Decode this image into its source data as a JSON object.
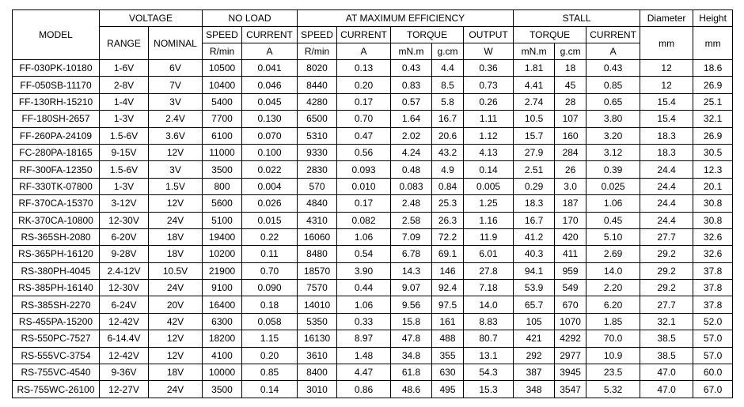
{
  "table": {
    "header": [
      [
        "MODEL",
        "VOLTAGE",
        "NO LOAD",
        "AT MAXIMUM EFFICIENCY",
        "STALL",
        "Diameter",
        "Height"
      ],
      [
        "RANGE",
        "NOMINAL",
        "SPEED",
        "CURRENT",
        "SPEED",
        "CURRENT",
        "TORQUE",
        "OUTPUT",
        "TORQUE",
        "CURRENT",
        "mm",
        "mm"
      ],
      [
        "R/min",
        "A",
        "R/min",
        "A",
        "mN.m",
        "g.cm",
        "W",
        "mN.m",
        "g.cm",
        "A"
      ]
    ],
    "rows": [
      [
        "FF-030PK-10180",
        "1-6V",
        "6V",
        "10500",
        "0.041",
        "8020",
        "0.13",
        "0.43",
        "4.4",
        "0.36",
        "1.81",
        "18",
        "0.43",
        "12",
        "18.6"
      ],
      [
        "FF-050SB-11170",
        "2-8V",
        "7V",
        "10400",
        "0.046",
        "8440",
        "0.20",
        "0.83",
        "8.5",
        "0.73",
        "4.41",
        "45",
        "0.85",
        "12",
        "26.9"
      ],
      [
        "FF-130RH-15210",
        "1-4V",
        "3V",
        "5400",
        "0.045",
        "4280",
        "0.17",
        "0.57",
        "5.8",
        "0.26",
        "2.74",
        "28",
        "0.65",
        "15.4",
        "25.1"
      ],
      [
        "FF-180SH-2657",
        "1-3V",
        "2.4V",
        "7700",
        "0.130",
        "6500",
        "0.70",
        "1.64",
        "16.7",
        "1.11",
        "10.5",
        "107",
        "3.80",
        "15.4",
        "32.1"
      ],
      [
        "FF-260PA-24109",
        "1.5-6V",
        "3.6V",
        "6100",
        "0.070",
        "5310",
        "0.47",
        "2.02",
        "20.6",
        "1.12",
        "15.7",
        "160",
        "3.20",
        "18.3",
        "26.9"
      ],
      [
        "FC-280PA-18165",
        "9-15V",
        "12V",
        "11000",
        "0.100",
        "9330",
        "0.56",
        "4.24",
        "43.2",
        "4.13",
        "27.9",
        "284",
        "3.12",
        "18.3",
        "30.5"
      ],
      [
        "RF-300FA-12350",
        "1.5-6V",
        "3V",
        "3500",
        "0.022",
        "2830",
        "0.093",
        "0.48",
        "4.9",
        "0.14",
        "2.51",
        "26",
        "0.39",
        "24.4",
        "12.3"
      ],
      [
        "RF-330TK-07800",
        "1-3V",
        "1.5V",
        "800",
        "0.004",
        "570",
        "0.010",
        "0.083",
        "0.84",
        "0.005",
        "0.29",
        "3.0",
        "0.025",
        "24.4",
        "20.1"
      ],
      [
        "RF-370CA-15370",
        "3-12V",
        "12V",
        "5600",
        "0.026",
        "4840",
        "0.17",
        "2.48",
        "25.3",
        "1.25",
        "18.3",
        "187",
        "1.06",
        "24.4",
        "30.8"
      ],
      [
        "RK-370CA-10800",
        "12-30V",
        "24V",
        "5100",
        "0.015",
        "4310",
        "0.082",
        "2.58",
        "26.3",
        "1.16",
        "16.7",
        "170",
        "0.45",
        "24.4",
        "30.8"
      ],
      [
        "RS-365SH-2080",
        "6-20V",
        "18V",
        "19400",
        "0.22",
        "16060",
        "1.06",
        "7.09",
        "72.2",
        "11.9",
        "41.2",
        "420",
        "5.10",
        "27.7",
        "32.6"
      ],
      [
        "RS-365PH-16120",
        "9-28V",
        "18V",
        "10200",
        "0.11",
        "8480",
        "0.54",
        "6.78",
        "69.1",
        "6.01",
        "40.3",
        "411",
        "2.69",
        "29.2",
        "32.6"
      ],
      [
        "RS-380PH-4045",
        "2.4-12V",
        "10.5V",
        "21900",
        "0.70",
        "18570",
        "3.90",
        "14.3",
        "146",
        "27.8",
        "94.1",
        "959",
        "14.0",
        "29.2",
        "37.8"
      ],
      [
        "RS-385PH-16140",
        "12-30V",
        "24V",
        "9100",
        "0.090",
        "7570",
        "0.44",
        "9.07",
        "92.4",
        "7.18",
        "53.9",
        "549",
        "2.20",
        "29.2",
        "37.8"
      ],
      [
        "RS-385SH-2270",
        "6-24V",
        "20V",
        "16400",
        "0.18",
        "14010",
        "1.06",
        "9.56",
        "97.5",
        "14.0",
        "65.7",
        "670",
        "6.20",
        "27.7",
        "37.8"
      ],
      [
        "RS-455PA-15200",
        "12-42V",
        "42V",
        "6300",
        "0.058",
        "5350",
        "0.33",
        "15.8",
        "161",
        "8.83",
        "105",
        "1070",
        "1.85",
        "32.1",
        "52.0"
      ],
      [
        "RS-550PC-7527",
        "6-14.4V",
        "12V",
        "18200",
        "1.15",
        "16130",
        "8.97",
        "47.8",
        "488",
        "80.7",
        "421",
        "4292",
        "70.0",
        "38.5",
        "57.0"
      ],
      [
        "RS-555VC-3754",
        "12-42V",
        "12V",
        "4100",
        "0.20",
        "3610",
        "1.48",
        "34.8",
        "355",
        "13.1",
        "292",
        "2977",
        "10.9",
        "38.5",
        "57.0"
      ],
      [
        "RS-755VC-4540",
        "9-36V",
        "18V",
        "10000",
        "0.85",
        "8400",
        "4.47",
        "61.8",
        "630",
        "54.3",
        "387",
        "3945",
        "23.5",
        "47.0",
        "60.0"
      ],
      [
        "RS-755WC-26100",
        "12-27V",
        "24V",
        "3500",
        "0.14",
        "3010",
        "0.86",
        "48.6",
        "495",
        "15.3",
        "348",
        "3547",
        "5.32",
        "47.0",
        "67.0"
      ]
    ]
  }
}
